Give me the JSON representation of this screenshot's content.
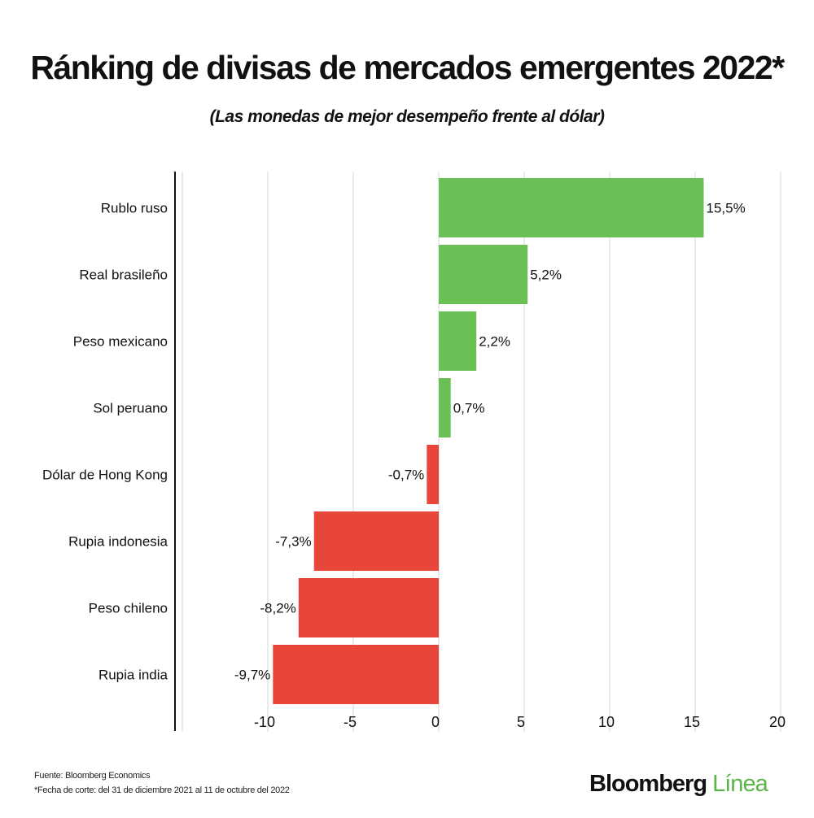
{
  "chart_data": {
    "type": "bar",
    "orientation": "horizontal",
    "title": "Ránking de divisas de mercados emergentes 2022*",
    "subtitle": "(Las monedas de mejor desempeño frente al dólar)",
    "categories": [
      "Rublo ruso",
      "Real brasileño",
      "Peso mexicano",
      "Sol peruano",
      "Dólar de Hong Kong",
      "Rupia indonesia",
      "Peso chileno",
      "Rupia india"
    ],
    "values": [
      15.5,
      5.2,
      2.2,
      0.7,
      -0.7,
      -7.3,
      -8.2,
      -9.7
    ],
    "data_labels": [
      "15,5%",
      "5,2%",
      "2,2%",
      "0,7%",
      "-0,7%",
      "-7,3%",
      "-8,2%",
      "-9,7%"
    ],
    "xlim": [
      -15,
      20
    ],
    "xticks": [
      -10,
      -5,
      0,
      5,
      10,
      15,
      20
    ],
    "xtick_labels": [
      "-10",
      "-5",
      "0",
      "5",
      "10",
      "15",
      "20"
    ],
    "grid": true,
    "colors": {
      "positive": "#6abf55",
      "negative": "#e8463b"
    }
  },
  "footer": {
    "source": "Fuente: Bloomberg Economics",
    "note": "*Fecha de corte: del 31 de diciembre 2021 al 11 de octubre del 2022",
    "logo_part1": "Bloomberg",
    "logo_part2": "Línea"
  }
}
